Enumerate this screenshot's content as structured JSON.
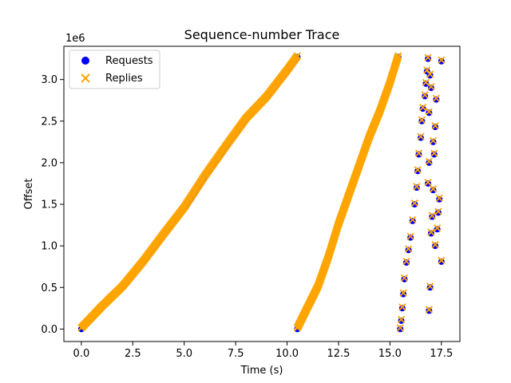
{
  "chart_data": {
    "type": "scatter",
    "title": "Sequence-number Trace",
    "xlabel": "Time (s)",
    "ylabel": "Offset",
    "y_offset_text": "1e6",
    "xlim": [
      -0.85,
      18.4
    ],
    "ylim": [
      -150000,
      3400000
    ],
    "x_ticks": [
      0.0,
      2.5,
      5.0,
      7.5,
      10.0,
      12.5,
      15.0,
      17.5
    ],
    "x_tick_labels": [
      "0.0",
      "2.5",
      "5.0",
      "7.5",
      "10.0",
      "12.5",
      "15.0",
      "17.5"
    ],
    "y_ticks": [
      0,
      500000,
      1000000,
      1500000,
      2000000,
      2500000,
      3000000
    ],
    "y_tick_labels": [
      "0.0",
      "0.5",
      "1.0",
      "1.5",
      "2.0",
      "2.5",
      "3.0"
    ],
    "grid": false,
    "legend_position": "top-left",
    "series": [
      {
        "name": "Requests",
        "marker": "circle",
        "color": "#0000ff",
        "segments": [
          {
            "x": [
              0.0,
              1.0,
              2.0,
              3.0,
              4.0,
              5.0,
              6.0,
              7.0,
              8.0,
              9.0,
              10.0,
              10.5
            ],
            "y": [
              0,
              260000,
              500000,
              800000,
              1130000,
              1450000,
              1830000,
              2180000,
              2520000,
              2780000,
              3100000,
              3270000
            ]
          },
          {
            "x": [
              10.5,
              11.0,
              11.5,
              12.0,
              12.5,
              13.0,
              13.5,
              14.0,
              14.5,
              15.0,
              15.4
            ],
            "y": [
              0,
              250000,
              500000,
              850000,
              1250000,
              1600000,
              1950000,
              2300000,
              2600000,
              2950000,
              3270000
            ]
          }
        ],
        "points": [
          [
            15.5,
            0
          ],
          [
            15.55,
            100000
          ],
          [
            15.6,
            250000
          ],
          [
            15.65,
            420000
          ],
          [
            15.7,
            600000
          ],
          [
            15.8,
            800000
          ],
          [
            15.9,
            950000
          ],
          [
            16.0,
            1100000
          ],
          [
            16.1,
            1300000
          ],
          [
            16.2,
            1500000
          ],
          [
            16.3,
            1700000
          ],
          [
            16.35,
            1900000
          ],
          [
            16.4,
            2100000
          ],
          [
            16.5,
            2300000
          ],
          [
            16.55,
            2500000
          ],
          [
            16.6,
            2650000
          ],
          [
            16.7,
            2800000
          ],
          [
            16.75,
            2950000
          ],
          [
            16.8,
            3100000
          ],
          [
            16.85,
            3250000
          ],
          [
            16.9,
            220000
          ],
          [
            16.95,
            500000
          ],
          [
            17.0,
            1150000
          ],
          [
            17.05,
            1350000
          ],
          [
            17.1,
            1670000
          ],
          [
            17.15,
            2100000
          ],
          [
            17.2,
            2430000
          ],
          [
            17.25,
            2760000
          ],
          [
            17.3,
            1200000
          ],
          [
            17.35,
            1400000
          ],
          [
            17.4,
            1560000
          ],
          [
            17.5,
            810000
          ],
          [
            17.5,
            3220000
          ],
          [
            16.95,
            3050000
          ],
          [
            17.0,
            2900000
          ],
          [
            16.9,
            2600000
          ],
          [
            16.9,
            2000000
          ],
          [
            16.85,
            1750000
          ],
          [
            17.1,
            2250000
          ],
          [
            17.2,
            1000000
          ]
        ]
      },
      {
        "name": "Replies",
        "marker": "x",
        "color": "#ffa500",
        "segments": [
          {
            "x": [
              0.0,
              1.0,
              2.0,
              3.0,
              4.0,
              5.0,
              6.0,
              7.0,
              8.0,
              9.0,
              10.0,
              10.5
            ],
            "y": [
              0,
              260000,
              500000,
              800000,
              1130000,
              1450000,
              1830000,
              2180000,
              2520000,
              2780000,
              3100000,
              3270000
            ]
          },
          {
            "x": [
              10.5,
              11.0,
              11.5,
              12.0,
              12.5,
              13.0,
              13.5,
              14.0,
              14.5,
              15.0,
              15.4
            ],
            "y": [
              0,
              250000,
              500000,
              850000,
              1250000,
              1600000,
              1950000,
              2300000,
              2600000,
              2950000,
              3270000
            ]
          }
        ],
        "points": [
          [
            15.5,
            0
          ],
          [
            15.55,
            100000
          ],
          [
            15.6,
            250000
          ],
          [
            15.65,
            420000
          ],
          [
            15.7,
            600000
          ],
          [
            15.8,
            800000
          ],
          [
            15.9,
            950000
          ],
          [
            16.0,
            1100000
          ],
          [
            16.1,
            1300000
          ],
          [
            16.2,
            1500000
          ],
          [
            16.3,
            1700000
          ],
          [
            16.35,
            1900000
          ],
          [
            16.4,
            2100000
          ],
          [
            16.5,
            2300000
          ],
          [
            16.55,
            2500000
          ],
          [
            16.6,
            2650000
          ],
          [
            16.7,
            2800000
          ],
          [
            16.75,
            2950000
          ],
          [
            16.8,
            3100000
          ],
          [
            16.85,
            3250000
          ],
          [
            16.9,
            220000
          ],
          [
            16.95,
            500000
          ],
          [
            17.0,
            1150000
          ],
          [
            17.05,
            1350000
          ],
          [
            17.1,
            1670000
          ],
          [
            17.15,
            2100000
          ],
          [
            17.2,
            2430000
          ],
          [
            17.25,
            2760000
          ],
          [
            17.3,
            1200000
          ],
          [
            17.35,
            1400000
          ],
          [
            17.4,
            1560000
          ],
          [
            17.5,
            810000
          ],
          [
            17.5,
            3220000
          ],
          [
            16.95,
            3050000
          ],
          [
            17.0,
            2900000
          ],
          [
            16.9,
            2600000
          ],
          [
            16.9,
            2000000
          ],
          [
            16.85,
            1750000
          ],
          [
            17.1,
            2250000
          ],
          [
            17.2,
            1000000
          ]
        ]
      }
    ]
  }
}
